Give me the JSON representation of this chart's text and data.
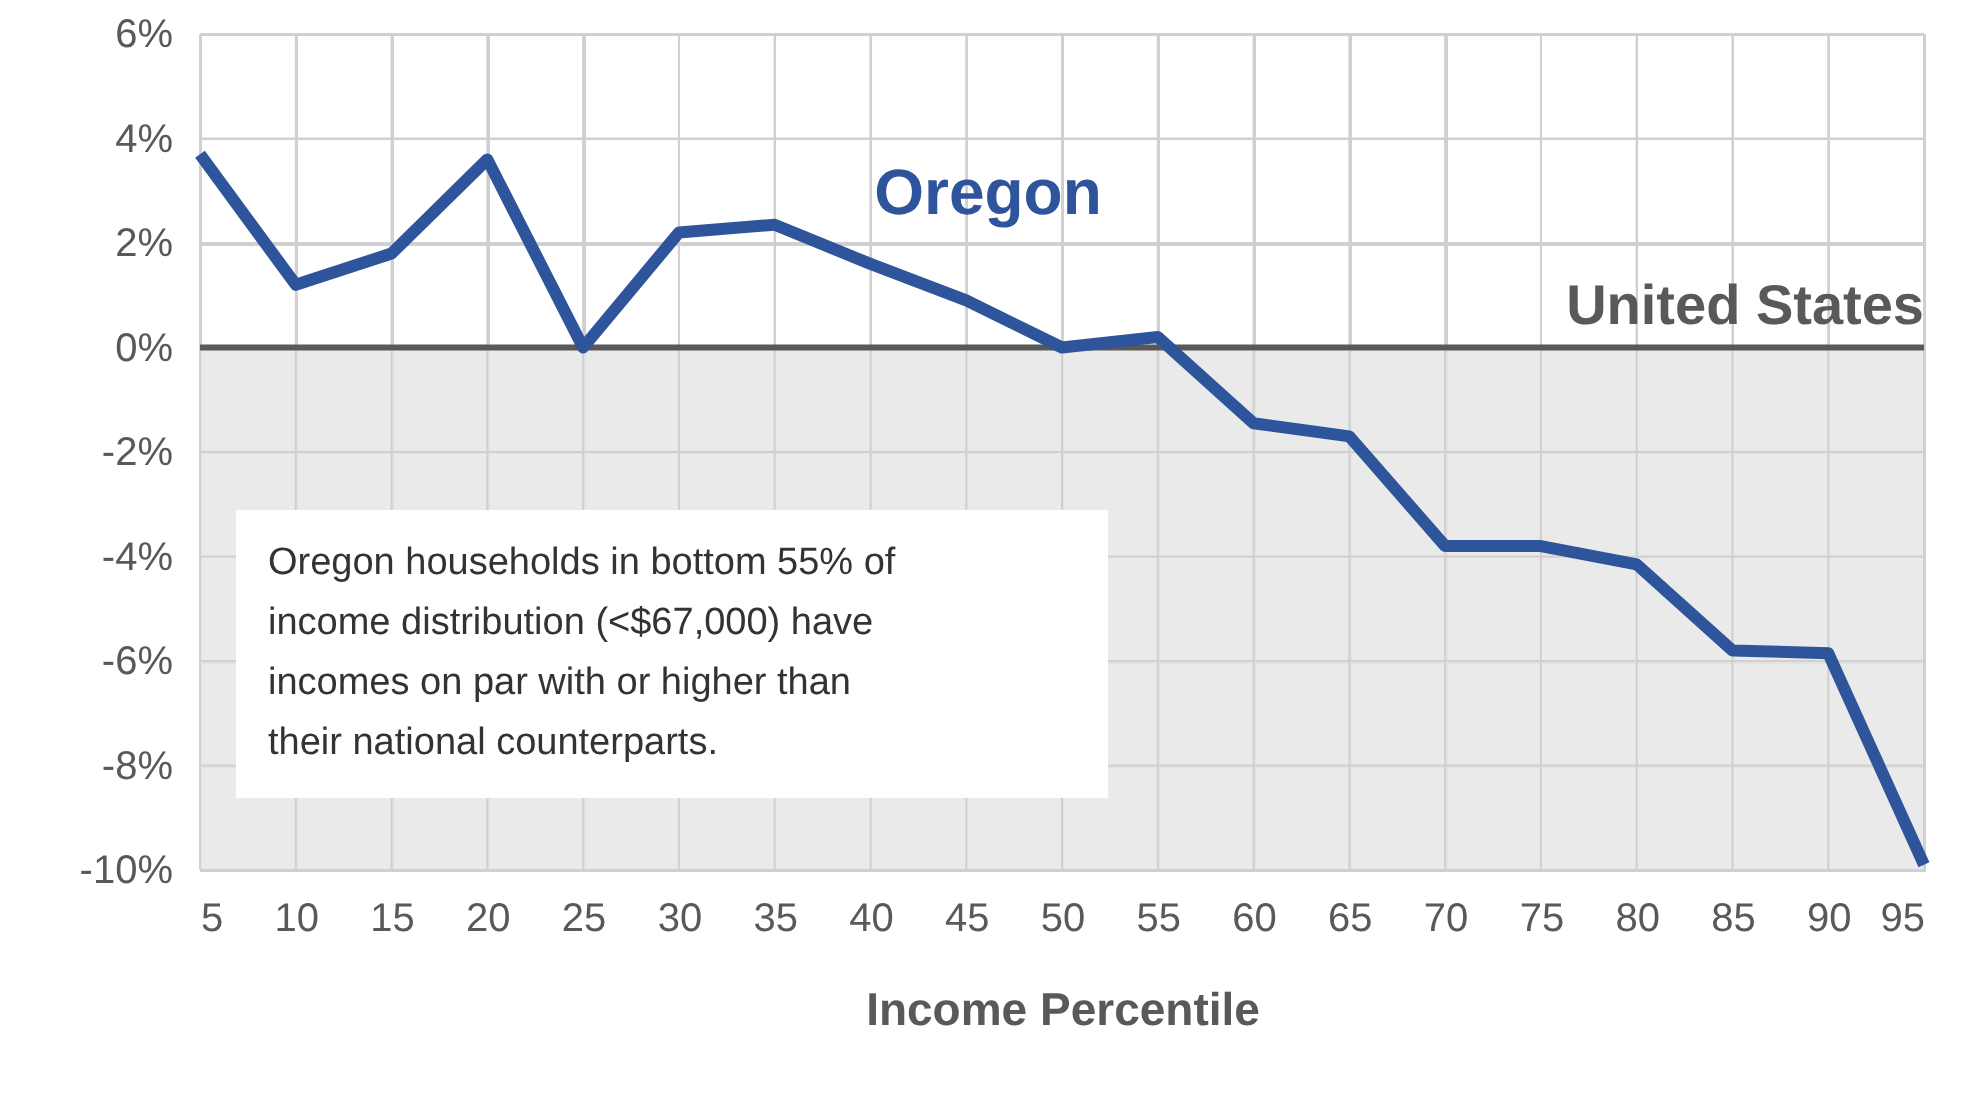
{
  "chart_data": {
    "type": "line",
    "xlabel": "Income Percentile",
    "x": [
      5,
      10,
      15,
      20,
      25,
      30,
      35,
      40,
      45,
      50,
      55,
      60,
      65,
      70,
      75,
      80,
      85,
      90,
      95
    ],
    "series": [
      {
        "name": "Oregon",
        "color": "#2e559b",
        "values": [
          3.7,
          1.2,
          1.8,
          3.6,
          0.0,
          2.2,
          2.35,
          1.6,
          0.9,
          0.0,
          0.2,
          -1.45,
          -1.7,
          -3.8,
          -3.8,
          -4.15,
          -5.8,
          -5.85,
          -9.9
        ]
      }
    ],
    "xlim": [
      5,
      95
    ],
    "xticks": [
      5,
      10,
      15,
      20,
      25,
      30,
      35,
      40,
      45,
      50,
      55,
      60,
      65,
      70,
      75,
      80,
      85,
      90,
      95
    ],
    "ylim": [
      -10,
      6
    ],
    "yticks": [
      {
        "value": -10,
        "label": "-10%"
      },
      {
        "value": -8,
        "label": "-8%"
      },
      {
        "value": -6,
        "label": "-6%"
      },
      {
        "value": -4,
        "label": "-4%"
      },
      {
        "value": -2,
        "label": "-2%"
      },
      {
        "value": 0,
        "label": "0%"
      },
      {
        "value": 2,
        "label": "2%"
      },
      {
        "value": 4,
        "label": "4%"
      },
      {
        "value": 6,
        "label": "6%"
      }
    ],
    "ref_lines": [
      {
        "axis": "y",
        "value": 0,
        "label": "United States",
        "color": "#595959"
      }
    ],
    "bands": [
      {
        "axis": "y",
        "from": -10,
        "to": 0,
        "color": "#e6e6e6"
      }
    ],
    "annotations": [
      "Oregon households in bottom 55% of income distribution (<$67,000) have incomes on par with or higher than their national counterparts."
    ],
    "grid": true,
    "marker": "none",
    "line_style": "solid"
  }
}
